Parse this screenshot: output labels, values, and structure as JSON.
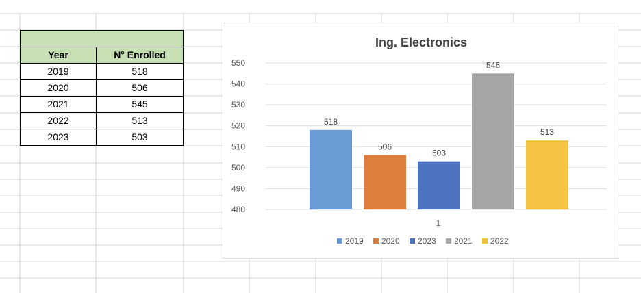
{
  "sheet": {
    "header_merged": "",
    "columns": [
      "Year",
      "N° Enrolled"
    ],
    "rows": [
      [
        "2019",
        "518"
      ],
      [
        "2020",
        "506"
      ],
      [
        "2021",
        "545"
      ],
      [
        "2022",
        "513"
      ],
      [
        "2023",
        "503"
      ]
    ]
  },
  "colors": {
    "header_fill": "#c6e0b4",
    "gridline": "#d4d4d4",
    "series": {
      "2019": "#6a9bd4",
      "2020": "#e07e3e",
      "2023": "#4d72be",
      "2021": "#a5a5a5",
      "2022": "#f5c242"
    }
  },
  "chart_data": {
    "type": "bar",
    "title": "Ing. Electronics",
    "categories": [
      "1"
    ],
    "series": [
      {
        "name": "2019",
        "values": [
          518
        ],
        "color": "#6a9bd4"
      },
      {
        "name": "2020",
        "values": [
          506
        ],
        "color": "#e07e3e"
      },
      {
        "name": "2023",
        "values": [
          503
        ],
        "color": "#4d72be"
      },
      {
        "name": "2021",
        "values": [
          545
        ],
        "color": "#a5a5a5"
      },
      {
        "name": "2022",
        "values": [
          513
        ],
        "color": "#f5c242"
      }
    ],
    "ylim": [
      480,
      550
    ],
    "yticks": [
      480,
      490,
      500,
      510,
      520,
      530,
      540,
      550
    ],
    "grid": true,
    "legend": "bottom",
    "xlabel": "",
    "ylabel": ""
  }
}
